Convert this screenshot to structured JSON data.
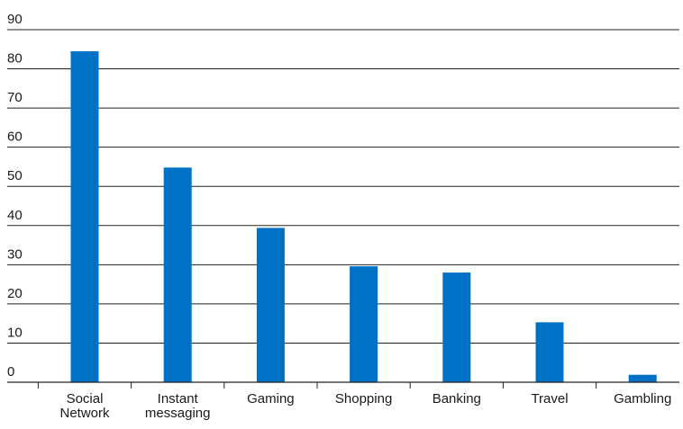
{
  "chart_data": {
    "type": "bar",
    "categories": [
      "Social Network",
      "Instant messaging",
      "Gaming",
      "Shopping",
      "Banking",
      "Travel",
      "Gambling"
    ],
    "category_lines": [
      [
        "Social",
        "Network"
      ],
      [
        "Instant",
        "messaging"
      ],
      [
        "Gaming"
      ],
      [
        "Shopping"
      ],
      [
        "Banking"
      ],
      [
        "Travel"
      ],
      [
        "Gambling"
      ]
    ],
    "values": [
      84.5,
      54.8,
      39.4,
      29.6,
      28.0,
      15.3,
      1.9
    ],
    "ylim": [
      0,
      90
    ],
    "yticks": [
      0,
      10,
      20,
      30,
      40,
      50,
      60,
      70,
      80,
      90
    ],
    "title": "",
    "xlabel": "",
    "ylabel": "",
    "grid": true,
    "bar_color": "#0072C6",
    "grid_color": "#222222"
  }
}
